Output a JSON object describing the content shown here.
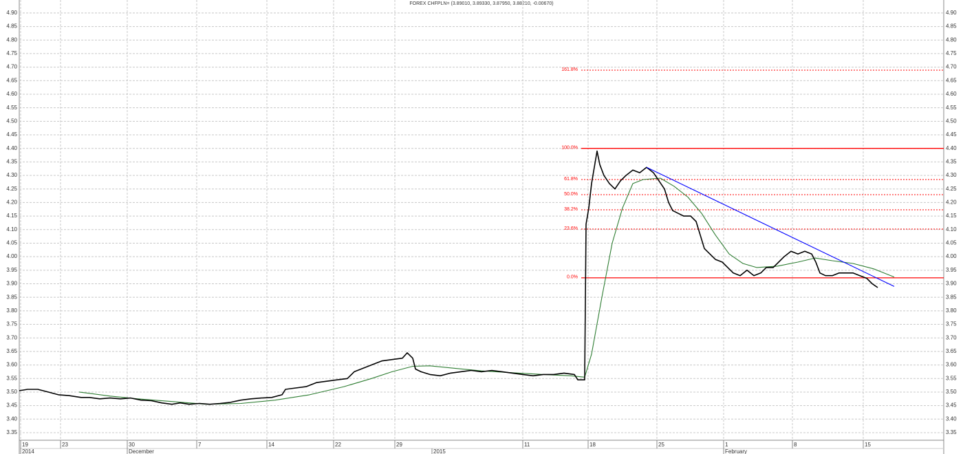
{
  "chart_data": {
    "type": "line",
    "title": "FOREX CHFPLN= (3.89010, 3.89330, 3.87950, 3.88210, -0.00670)",
    "grid": true,
    "xlim": [
      28,
      1372
    ],
    "ylim": [
      3.322,
      4.948
    ],
    "yticks": [
      {
        "value": 4.9,
        "label": "4.90"
      },
      4.85,
      {
        "value": 4.8,
        "label": "4.80"
      },
      4.75,
      {
        "value": 4.7,
        "label": "4.70"
      },
      4.65,
      {
        "value": 4.6,
        "label": "4.60"
      },
      4.55,
      {
        "value": 4.5,
        "label": "4.50"
      },
      4.45,
      {
        "value": 4.4,
        "label": "4.40"
      },
      4.35,
      {
        "value": 4.3,
        "label": "4.30"
      },
      4.25,
      {
        "value": 4.2,
        "label": "4.20"
      },
      4.15,
      {
        "value": 4.1,
        "label": "4.10"
      },
      4.05,
      {
        "value": 4,
        "label": "4.00"
      },
      3.95,
      {
        "value": 3.9,
        "label": "3.90"
      },
      3.85,
      {
        "value": 3.8,
        "label": "3.80"
      },
      3.75,
      {
        "value": 3.7,
        "label": "3.70"
      },
      3.65,
      {
        "value": 3.6,
        "label": "3.60"
      },
      3.55,
      {
        "value": 3.5,
        "label": "3.50"
      },
      3.45,
      {
        "value": 3.4,
        "label": "3.40"
      },
      3.35
    ],
    "xticks": [
      {
        "value": 30,
        "label": "19"
      },
      {
        "value": 88,
        "label": "23"
      },
      {
        "value": 185,
        "label": "30"
      },
      {
        "value": 286,
        "label": "7"
      },
      {
        "value": 388,
        "label": "14"
      },
      {
        "value": 485,
        "label": "22"
      },
      {
        "value": 574,
        "label": "29"
      },
      {
        "value": 760,
        "label": "11"
      },
      {
        "value": 855,
        "label": "18"
      },
      {
        "value": 955,
        "label": "25"
      },
      {
        "value": 1052,
        "label": "1"
      },
      {
        "value": 1152,
        "label": "8"
      },
      {
        "value": 1255,
        "label": "15"
      }
    ],
    "period_labels": [
      {
        "value": 30,
        "label": "2014"
      },
      {
        "value": 185,
        "label": "December"
      },
      {
        "value": 628,
        "label": "2015"
      },
      {
        "value": 1052,
        "label": "February"
      }
    ],
    "series": [
      {
        "color": "#000000",
        "x": [
          28,
          40,
          55,
          70,
          85,
          100,
          118,
          130,
          145,
          160,
          175,
          190,
          205,
          220,
          235,
          250,
          262,
          275,
          290,
          305,
          320,
          335,
          350,
          365,
          380,
          395,
          410,
          415,
          430,
          445,
          460,
          475,
          490,
          505,
          515,
          530,
          545,
          555,
          570,
          585,
          592,
          600,
          604,
          612,
          625,
          640,
          655,
          670,
          685,
          700,
          715,
          730,
          745,
          760,
          775,
          790,
          805,
          820,
          835,
          840,
          850,
          852,
          856,
          860,
          864,
          868,
          872,
          878,
          886,
          894,
          902,
          910,
          920,
          930,
          940,
          950,
          958,
          966,
          972,
          978,
          986,
          994,
          1004,
          1012,
          1018,
          1024,
          1032,
          1040,
          1050,
          1058,
          1066,
          1076,
          1086,
          1096,
          1106,
          1114,
          1124,
          1132,
          1140,
          1150,
          1160,
          1170,
          1180,
          1186,
          1192,
          1200,
          1210,
          1220,
          1230,
          1240,
          1250,
          1260,
          1268,
          1276
        ],
        "values": [
          3.505,
          3.51,
          3.51,
          3.5,
          3.49,
          3.487,
          3.48,
          3.48,
          3.475,
          3.478,
          3.475,
          3.478,
          3.47,
          3.468,
          3.46,
          3.455,
          3.46,
          3.455,
          3.458,
          3.455,
          3.458,
          3.462,
          3.47,
          3.475,
          3.478,
          3.48,
          3.49,
          3.51,
          3.515,
          3.52,
          3.535,
          3.54,
          3.545,
          3.55,
          3.575,
          3.59,
          3.605,
          3.615,
          3.62,
          3.625,
          3.645,
          3.625,
          3.585,
          3.575,
          3.565,
          3.56,
          3.57,
          3.575,
          3.58,
          3.575,
          3.58,
          3.575,
          3.57,
          3.565,
          3.56,
          3.565,
          3.565,
          3.57,
          3.565,
          3.545,
          3.545,
          4.12,
          4.18,
          4.27,
          4.33,
          4.39,
          4.34,
          4.3,
          4.27,
          4.25,
          4.28,
          4.3,
          4.32,
          4.31,
          4.33,
          4.31,
          4.28,
          4.25,
          4.2,
          4.17,
          4.16,
          4.15,
          4.15,
          4.13,
          4.08,
          4.03,
          4.01,
          3.99,
          3.98,
          3.96,
          3.94,
          3.93,
          3.95,
          3.93,
          3.94,
          3.96,
          3.96,
          3.98,
          4,
          4.02,
          4.01,
          4.02,
          4.01,
          3.98,
          3.94,
          3.93,
          3.93,
          3.94,
          3.94,
          3.94,
          3.93,
          3.92,
          3.9,
          3.886
        ]
      },
      {
        "color": "#2e7d32",
        "x": [
          115,
          160,
          200,
          250,
          300,
          350,
          400,
          450,
          500,
          540,
          570,
          600,
          625,
          660,
          700,
          740,
          790,
          830,
          850,
          860,
          875,
          890,
          905,
          920,
          935,
          960,
          980,
          1000,
          1020,
          1040,
          1060,
          1080,
          1100,
          1130,
          1160,
          1185,
          1210,
          1240,
          1270,
          1300
        ],
        "values": [
          3.5,
          3.485,
          3.475,
          3.465,
          3.455,
          3.458,
          3.47,
          3.49,
          3.52,
          3.55,
          3.575,
          3.595,
          3.597,
          3.588,
          3.578,
          3.572,
          3.565,
          3.56,
          3.555,
          3.64,
          3.85,
          4.05,
          4.18,
          4.27,
          4.285,
          4.29,
          4.26,
          4.22,
          4.16,
          4.08,
          4.01,
          3.975,
          3.96,
          3.965,
          3.98,
          3.995,
          3.985,
          3.975,
          3.955,
          3.925
        ]
      }
    ],
    "trendline": {
      "color": "#0000ff",
      "x": [
        940,
        1300
      ],
      "values": [
        4.33,
        3.89
      ]
    },
    "levels_color": "#ff0000",
    "levels_start": 845,
    "levels": [
      {
        "label": "161.8%",
        "value": 4.689,
        "solid": false
      },
      {
        "label": "100.0%",
        "value": 4.4,
        "solid": true
      },
      {
        "label": "61.8%",
        "value": 4.285,
        "solid": false
      },
      {
        "label": "50.0%",
        "value": 4.229,
        "solid": false
      },
      {
        "label": "38.2%",
        "value": 4.173,
        "solid": false
      },
      {
        "label": "23.6%",
        "value": 4.102,
        "solid": false
      },
      {
        "label": "0.0%",
        "value": 3.922,
        "solid": true
      }
    ]
  }
}
